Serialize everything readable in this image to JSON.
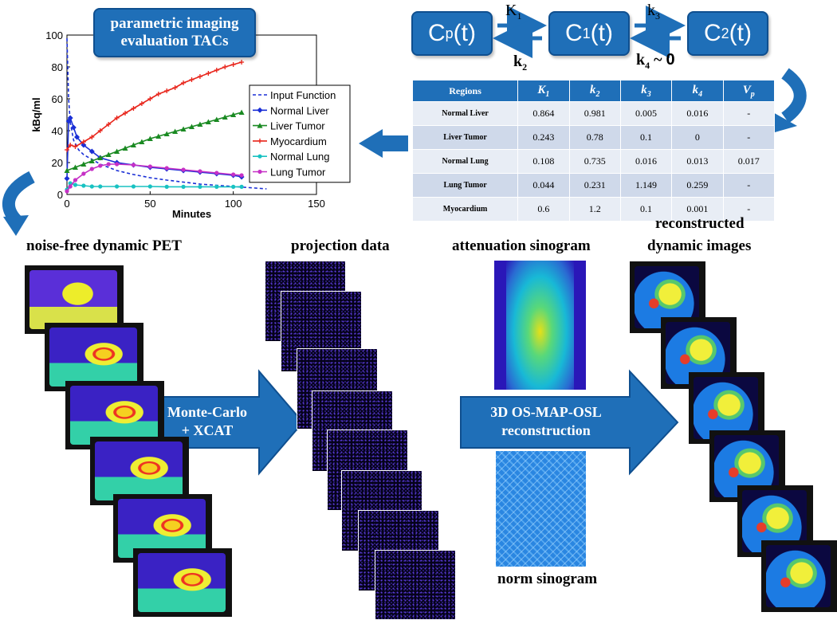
{
  "chart_title": "parametric imaging evaluation TACs",
  "chart_data": {
    "type": "line",
    "xlabel": "Minutes",
    "ylabel": "kBq/ml",
    "xlim": [
      0,
      150
    ],
    "ylim": [
      0,
      100
    ],
    "xticks": [
      "0",
      "50",
      "100",
      "150"
    ],
    "yticks": [
      "0",
      "20",
      "40",
      "60",
      "80",
      "100"
    ],
    "legend_position": "right",
    "series": [
      {
        "name": "Input Function",
        "color": "#1a2fd6",
        "style": "dashed",
        "x": [
          0,
          1,
          2,
          4,
          7,
          10,
          15,
          20,
          30,
          40,
          50,
          60,
          80,
          100,
          120
        ],
        "y": [
          98,
          60,
          45,
          34,
          28,
          25,
          22,
          19,
          15,
          12.5,
          10.5,
          9,
          6.5,
          5,
          3.5
        ]
      },
      {
        "name": "Normal Liver",
        "color": "#1a2fd6",
        "marker": "diamond",
        "x": [
          0,
          1,
          2,
          4,
          6,
          10,
          15,
          20,
          30,
          40,
          50,
          60,
          70,
          80,
          90,
          100,
          105
        ],
        "y": [
          10,
          46,
          48,
          42,
          36,
          31,
          27,
          23,
          20,
          18.5,
          17,
          16,
          15,
          14,
          13,
          12,
          11
        ]
      },
      {
        "name": "Liver Tumor",
        "color": "#1a8a22",
        "marker": "triangle",
        "x": [
          0,
          5,
          10,
          15,
          20,
          25,
          30,
          35,
          40,
          45,
          50,
          55,
          60,
          65,
          70,
          75,
          80,
          85,
          90,
          95,
          100,
          105
        ],
        "y": [
          15,
          17,
          19,
          21,
          23,
          25,
          27,
          29,
          31,
          33,
          35,
          36.5,
          38,
          39.5,
          41,
          42.5,
          44,
          45.5,
          47,
          48.5,
          50,
          51.5
        ]
      },
      {
        "name": "Myocardium",
        "color": "#e8241a",
        "marker": "plus",
        "x": [
          0,
          2,
          5,
          10,
          15,
          20,
          25,
          30,
          35,
          40,
          45,
          50,
          55,
          60,
          65,
          70,
          75,
          80,
          85,
          90,
          95,
          100,
          105
        ],
        "y": [
          28,
          31,
          30,
          33,
          36,
          40,
          44,
          48,
          51,
          54,
          57,
          60,
          63,
          65,
          67,
          70,
          72,
          74,
          76,
          78,
          80,
          81.5,
          83
        ]
      },
      {
        "name": "Normal Lung",
        "color": "#18c2c2",
        "marker": "circle",
        "x": [
          0,
          2,
          5,
          10,
          15,
          20,
          30,
          40,
          50,
          60,
          70,
          80,
          90,
          100,
          105
        ],
        "y": [
          3,
          7,
          6,
          5.5,
          5,
          5,
          5,
          5,
          5,
          4.8,
          4.8,
          4.8,
          4.8,
          4.8,
          4.8
        ]
      },
      {
        "name": "Lung Tumor",
        "color": "#c630c6",
        "marker": "circle",
        "x": [
          0,
          2,
          5,
          10,
          15,
          20,
          25,
          30,
          40,
          50,
          60,
          70,
          80,
          90,
          100,
          105
        ],
        "y": [
          2,
          5,
          9,
          13,
          16,
          18,
          19,
          19,
          18.5,
          17.5,
          16.5,
          15.5,
          14.5,
          13.5,
          12.5,
          12
        ]
      }
    ]
  },
  "model": {
    "cp": "C",
    "cp_sub": "p",
    "cp_arg": "(t)",
    "c1": "C",
    "c1_sub": "1",
    "c1_arg": "(t)",
    "c2": "C",
    "c2_sub": "2",
    "c2_arg": "(t)",
    "K1": "K",
    "K1_sub": "1",
    "k2": "k",
    "k2_sub": "2",
    "k3": "k",
    "k3_sub": "3",
    "k4": "k",
    "k4_sub": "4",
    "k4_tail": " ~ ",
    "k4_zero": "0"
  },
  "table": {
    "headers": [
      "Regions",
      "K",
      "k",
      "k",
      "k",
      "V"
    ],
    "header_subs": [
      "",
      "1",
      "2",
      "3",
      "4",
      "p"
    ],
    "rows": [
      [
        "Normal Liver",
        "0.864",
        "0.981",
        "0.005",
        "0.016",
        "-"
      ],
      [
        "Liver Tumor",
        "0.243",
        "0.78",
        "0.1",
        "0",
        "-"
      ],
      [
        "Normal Lung",
        "0.108",
        "0.735",
        "0.016",
        "0.013",
        "0.017"
      ],
      [
        "Lung Tumor",
        "0.044",
        "0.231",
        "1.149",
        "0.259",
        "-"
      ],
      [
        "Myocardium",
        "0.6",
        "1.2",
        "0.1",
        "0.001",
        "-"
      ]
    ]
  },
  "labels": {
    "noise_free": "noise-free dynamic PET",
    "projection": "projection data",
    "attenuation": "attenuation sinogram",
    "reconstructed_1": "reconstructed",
    "reconstructed_2": "dynamic images",
    "norm": "norm sinogram",
    "arrow1_line1": "Monte-Carlo",
    "arrow1_line2": "+ XCAT",
    "arrow2_line1": "3D OS-MAP-OSL",
    "arrow2_line2": "reconstruction"
  }
}
